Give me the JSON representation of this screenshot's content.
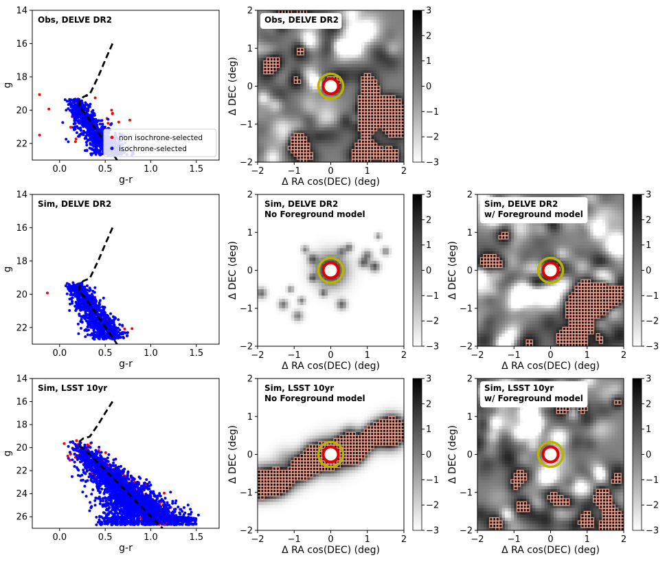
{
  "chart_data": [
    {
      "id": "cmd-obs",
      "type": "scatter",
      "title": "Obs, DELVE DR2",
      "xlabel": "g-r",
      "ylabel": "g",
      "xlim": [
        -0.3,
        1.75
      ],
      "ylim": [
        23,
        14
      ],
      "xticks": [
        "0.0",
        "0.5",
        "1.0",
        "1.5"
      ],
      "yticks": [
        "14",
        "16",
        "18",
        "20",
        "22"
      ],
      "series": [
        {
          "name": "non isochrone-selected",
          "color": "#ff0000"
        },
        {
          "name": "isochrone-selected",
          "color": "#0000ff"
        }
      ],
      "legend": "lower-right"
    },
    {
      "id": "cmd-sim-delve",
      "type": "scatter",
      "title": "Sim, DELVE DR2",
      "xlabel": "g-r",
      "ylabel": "g",
      "xlim": [
        -0.3,
        1.75
      ],
      "ylim": [
        23,
        14
      ],
      "xticks": [
        "0.0",
        "0.5",
        "1.0",
        "1.5"
      ],
      "yticks": [
        "14",
        "16",
        "18",
        "20",
        "22"
      ]
    },
    {
      "id": "cmd-sim-lsst",
      "type": "scatter",
      "title": "Sim, LSST 10yr",
      "xlabel": "g-r",
      "ylabel": "g",
      "xlim": [
        -0.3,
        1.75
      ],
      "ylim": [
        27,
        14
      ],
      "xticks": [
        "0.0",
        "0.5",
        "1.0",
        "1.5"
      ],
      "yticks": [
        "14",
        "16",
        "18",
        "20",
        "22",
        "24",
        "26"
      ]
    },
    {
      "id": "map-obs",
      "type": "heatmap",
      "title": "Obs, DELVE DR2",
      "xlabel": "Δ RA cos(DEC) (deg)",
      "ylabel": "Δ DEC (deg)",
      "xlim": [
        -2,
        2
      ],
      "ylim": [
        -2,
        2
      ],
      "xticks": [
        "−2",
        "−1",
        "0",
        "1",
        "2"
      ],
      "yticks": [
        "−2",
        "−1",
        "0",
        "1",
        "2"
      ],
      "colorbar": {
        "range": [
          -3,
          3
        ],
        "ticks": [
          "−3",
          "−2",
          "−1",
          "0",
          "1",
          "2",
          "3"
        ]
      }
    },
    {
      "id": "map-sim-delve-nofg",
      "type": "heatmap",
      "title": "Sim, DELVE DR2\nNo Foreground model",
      "xlabel": "Δ RA cos(DEC) (deg)",
      "ylabel": "Δ DEC (deg)",
      "xlim": [
        -2,
        2
      ],
      "ylim": [
        -2,
        2
      ],
      "xticks": [
        "−2",
        "−1",
        "0",
        "1",
        "2"
      ],
      "yticks": [
        "−2",
        "−1",
        "0",
        "1",
        "2"
      ],
      "colorbar": {
        "range": [
          -3,
          3
        ],
        "ticks": [
          "−3",
          "−2",
          "−1",
          "0",
          "1",
          "2",
          "3"
        ]
      }
    },
    {
      "id": "map-sim-delve-fg",
      "type": "heatmap",
      "title": "Sim, DELVE DR2\nw/ Foreground model",
      "xlabel": "Δ RA cos(DEC) (deg)",
      "ylabel": "Δ DEC (deg)",
      "xlim": [
        -2,
        2
      ],
      "ylim": [
        -2,
        2
      ],
      "xticks": [
        "−2",
        "−1",
        "0",
        "1",
        "2"
      ],
      "yticks": [
        "−2",
        "−1",
        "0",
        "1",
        "2"
      ],
      "colorbar": {
        "range": [
          -3,
          3
        ],
        "ticks": [
          "−3",
          "−2",
          "−1",
          "0",
          "1",
          "2",
          "3"
        ]
      }
    },
    {
      "id": "map-sim-lsst-nofg",
      "type": "heatmap",
      "title": "Sim, LSST 10yr\nNo Foreground model",
      "xlabel": "Δ RA cos(DEC) (deg)",
      "ylabel": "Δ DEC (deg)",
      "xlim": [
        -2,
        2
      ],
      "ylim": [
        -2,
        2
      ],
      "xticks": [
        "−2",
        "−1",
        "0",
        "1",
        "2"
      ],
      "yticks": [
        "−2",
        "−1",
        "0",
        "1",
        "2"
      ],
      "colorbar": {
        "range": [
          -3,
          3
        ],
        "ticks": [
          "−3",
          "−2",
          "−1",
          "0",
          "1",
          "2",
          "3"
        ]
      }
    },
    {
      "id": "map-sim-lsst-fg",
      "type": "heatmap",
      "title": "Sim, LSST 10yr\nw/ Foreground model",
      "xlabel": "Δ RA cos(DEC) (deg)",
      "ylabel": "Δ DEC (deg)",
      "xlim": [
        -2,
        2
      ],
      "ylim": [
        -2,
        2
      ],
      "xticks": [
        "−2",
        "−1",
        "0",
        "1",
        "2"
      ],
      "yticks": [
        "−2",
        "−1",
        "0",
        "1",
        "2"
      ],
      "colorbar": {
        "range": [
          -3,
          3
        ],
        "ticks": [
          "−3",
          "−2",
          "−1",
          "0",
          "1",
          "2",
          "3"
        ]
      }
    }
  ]
}
